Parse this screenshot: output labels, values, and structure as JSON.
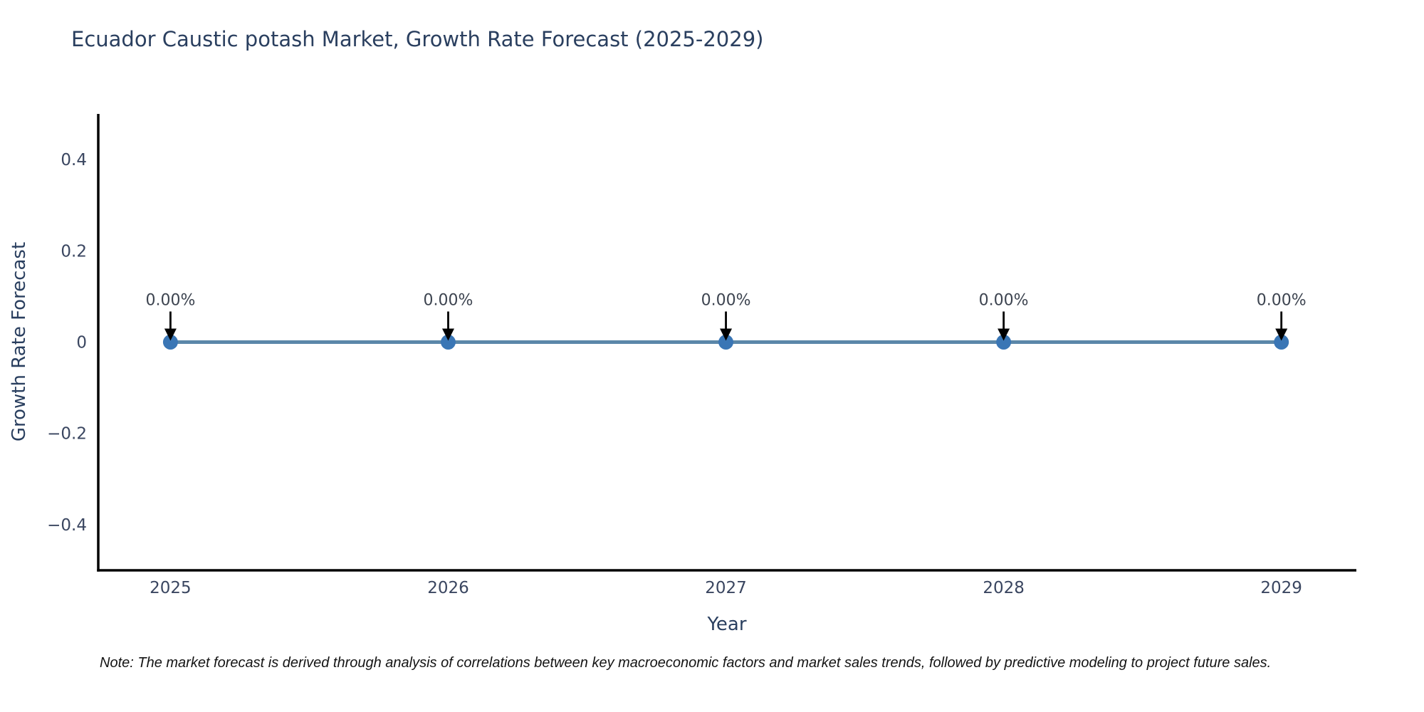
{
  "page": {
    "background": "#ffffff"
  },
  "chart_data": {
    "type": "line",
    "title": "Ecuador Caustic potash Market, Growth Rate Forecast (2025-2029)",
    "xlabel": "Year",
    "ylabel": "Growth Rate Forecast",
    "x": [
      2025,
      2026,
      2027,
      2028,
      2029
    ],
    "categories": [
      "2025",
      "2026",
      "2027",
      "2028",
      "2029"
    ],
    "series": [
      {
        "name": "Growth Rate Forecast",
        "values": [
          0,
          0,
          0,
          0,
          0
        ]
      }
    ],
    "point_labels": [
      "0.00%",
      "0.00%",
      "0.00%",
      "0.00%",
      "0.00%"
    ],
    "xlim": [
      2024.74,
      2029.27
    ],
    "ylim": [
      -0.5,
      0.5
    ],
    "xticks": {
      "values": [
        2025,
        2026,
        2027,
        2028,
        2029
      ],
      "labels": [
        "2025",
        "2026",
        "2027",
        "2028",
        "2029"
      ]
    },
    "yticks": {
      "values": [
        0.4,
        0.2,
        0,
        -0.2,
        -0.4
      ],
      "labels": [
        "0.4",
        "0.2",
        "0",
        "−0.2",
        "−0.4"
      ]
    },
    "grid": false,
    "legend": "none",
    "marker": "circle",
    "annotation_arrows": true,
    "colors": {
      "line": "#5b87a9",
      "marker": "#3a76b5",
      "axis": "#000000",
      "tick_label": "#3a4660",
      "title": "#2a3f5f",
      "annotation": "#3d4450",
      "arrow": "#000000"
    }
  },
  "note": {
    "text": "Note: The market forecast is derived through analysis of correlations between key macroeconomic factors and market sales trends, followed by predictive modeling to project future sales."
  }
}
